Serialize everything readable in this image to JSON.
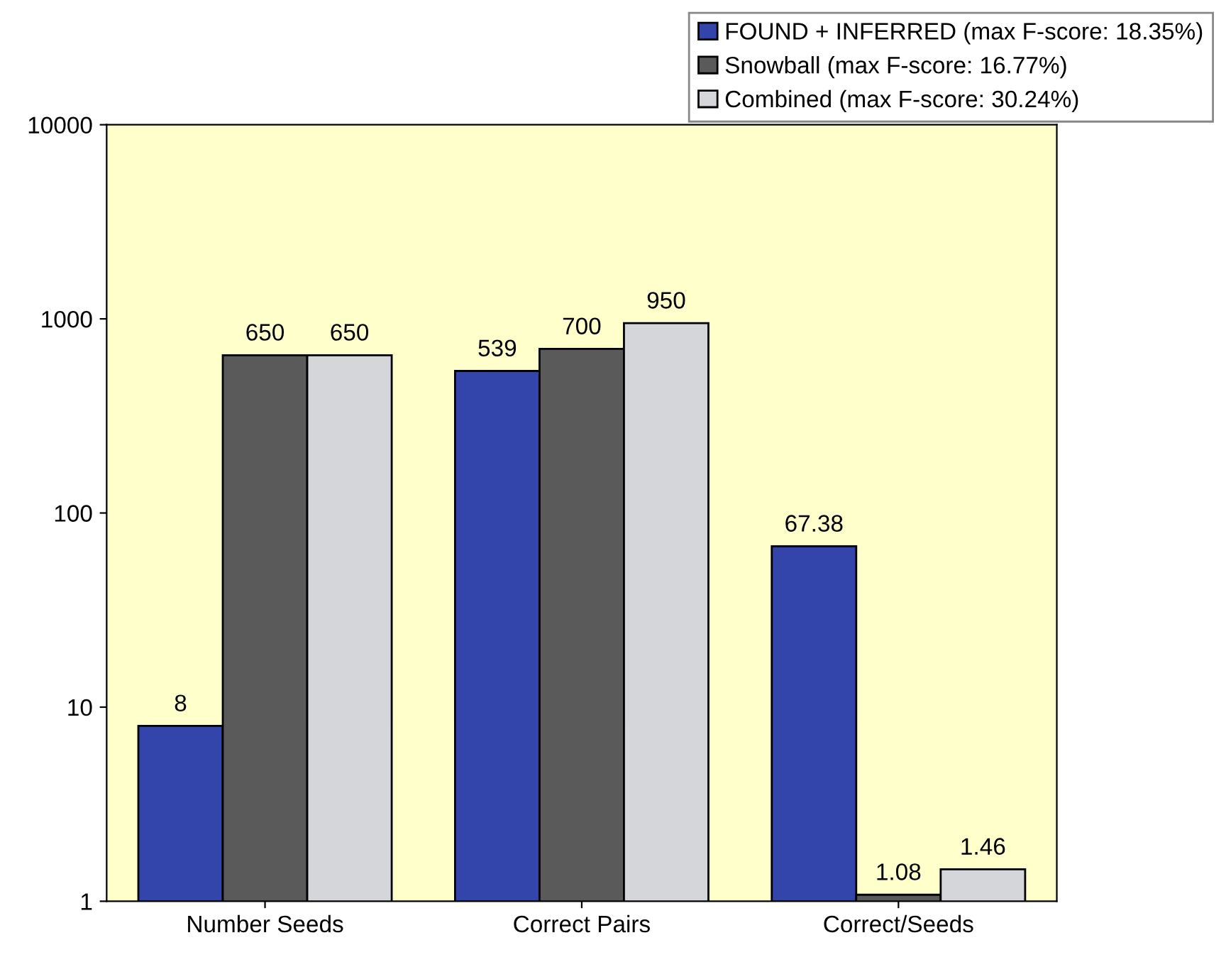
{
  "chart_data": {
    "type": "bar",
    "categories": [
      "Number Seeds",
      "Correct Pairs",
      "Correct/Seeds"
    ],
    "series": [
      {
        "name": "FOUND + INFERRED (max F-score: 18.35%)",
        "color": "#3344aa",
        "values": [
          8,
          539,
          67.38
        ],
        "value_labels": [
          "8",
          "539",
          "67.38"
        ]
      },
      {
        "name": "Snowball (max F-score: 16.77%)",
        "color": "#5a5a5a",
        "values": [
          650,
          700,
          1.08
        ],
        "value_labels": [
          "650",
          "700",
          "1.08"
        ]
      },
      {
        "name": "Combined (max F-score: 30.24%)",
        "color": "#d4d6da",
        "values": [
          650,
          950,
          1.46
        ],
        "value_labels": [
          "650",
          "950",
          "1.46"
        ]
      }
    ],
    "log": "y",
    "ylim": [
      1,
      10000
    ],
    "yticks": [
      1,
      10,
      100,
      1000,
      10000
    ],
    "grid": false,
    "legend": "top right"
  }
}
